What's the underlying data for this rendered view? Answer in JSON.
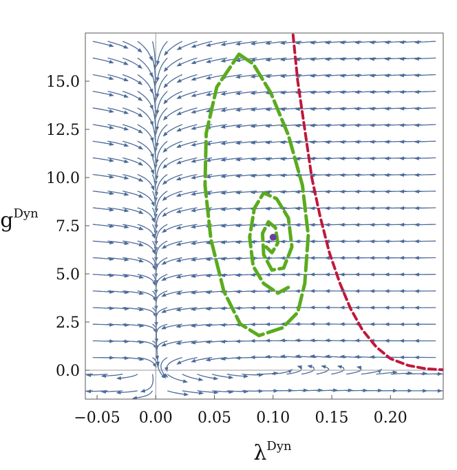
{
  "chart_data": {
    "type": "streamplot",
    "xlabel": "λ",
    "xlabel_sup": "Dyn",
    "ylabel": "g",
    "ylabel_sup": "Dyn",
    "xlim": [
      -0.06,
      0.245
    ],
    "ylim": [
      -1.5,
      17.5
    ],
    "x_ticks": [
      -0.05,
      0.0,
      0.05,
      0.1,
      0.15,
      0.2
    ],
    "x_tick_labels": [
      "−0.05",
      "0.00",
      "0.05",
      "0.10",
      "0.15",
      "0.20"
    ],
    "y_ticks": [
      0.0,
      2.5,
      5.0,
      7.5,
      10.0,
      12.5,
      15.0
    ],
    "y_tick_labels": [
      "0.0",
      "2.5",
      "5.0",
      "7.5",
      "10.0",
      "12.5",
      "15.0"
    ],
    "grid": false,
    "colors": {
      "streamlines": "#4c6b9a",
      "limit_cycle_inner": "#5aab1e",
      "limit_cycle_outer": "#5aab1e",
      "boundary_curve": "#c0173a",
      "fixed_point": "#6a3fa0",
      "zero_axes": "#9a9a9a"
    },
    "fixed_point": {
      "x": 0.1,
      "y": 6.9
    },
    "outer_cycle": [
      [
        0.071,
        16.4
      ],
      [
        0.083,
        15.9
      ],
      [
        0.098,
        14.4
      ],
      [
        0.113,
        12.2
      ],
      [
        0.125,
        9.6
      ],
      [
        0.13,
        7.0
      ],
      [
        0.127,
        4.5
      ],
      [
        0.121,
        3.0
      ],
      [
        0.108,
        2.2
      ],
      [
        0.088,
        1.8
      ],
      [
        0.072,
        2.4
      ],
      [
        0.058,
        4.1
      ],
      [
        0.047,
        6.8
      ],
      [
        0.042,
        9.6
      ],
      [
        0.043,
        12.3
      ],
      [
        0.052,
        14.7
      ],
      [
        0.071,
        16.4
      ]
    ],
    "inner_spiral": [
      [
        0.094,
        6.4
      ],
      [
        0.099,
        6.1
      ],
      [
        0.104,
        6.6
      ],
      [
        0.102,
        7.4
      ],
      [
        0.096,
        7.7
      ],
      [
        0.091,
        7.1
      ],
      [
        0.092,
        6.0
      ],
      [
        0.099,
        5.2
      ],
      [
        0.109,
        5.3
      ],
      [
        0.116,
        6.4
      ],
      [
        0.113,
        7.9
      ],
      [
        0.103,
        8.9
      ],
      [
        0.092,
        9.2
      ],
      [
        0.084,
        8.4
      ],
      [
        0.08,
        6.9
      ],
      [
        0.083,
        5.4
      ],
      [
        0.092,
        4.5
      ],
      [
        0.104,
        4.0
      ],
      [
        0.116,
        4.4
      ]
    ],
    "boundary_curve": [
      [
        0.117,
        17.4
      ],
      [
        0.121,
        15.0
      ],
      [
        0.127,
        12.5
      ],
      [
        0.133,
        10.0
      ],
      [
        0.14,
        8.0
      ],
      [
        0.148,
        6.1
      ],
      [
        0.157,
        4.5
      ],
      [
        0.166,
        3.2
      ],
      [
        0.176,
        2.1
      ],
      [
        0.188,
        1.2
      ],
      [
        0.2,
        0.6
      ],
      [
        0.215,
        0.25
      ],
      [
        0.23,
        0.08
      ],
      [
        0.245,
        0.02
      ]
    ]
  }
}
